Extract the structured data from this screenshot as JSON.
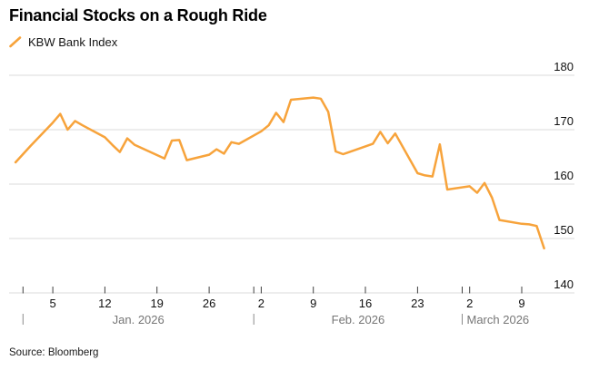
{
  "header": {
    "title": "Financial Stocks on a Rough Ride"
  },
  "legend": {
    "series_label": "KBW Bank Index",
    "marker_color": "#F7A33B"
  },
  "footer": {
    "source": "Source: Bloomberg"
  },
  "chart_data": {
    "type": "line",
    "title": "Financial Stocks on a Rough Ride",
    "legend_position": "top-left",
    "grid": "horizontal",
    "style": {
      "line_color": "#F7A33B",
      "grid_color": "#DBDBDB",
      "axis_text_color": "#101010",
      "tick_color": "#3F3F3F",
      "month_text_color": "#767676",
      "background": "#FFFFFF"
    },
    "y_axis": {
      "side": "right",
      "range": [
        140,
        180
      ],
      "ticks": [
        140,
        150,
        160,
        170,
        180
      ]
    },
    "x_axis": {
      "range": [
        "2025-12-30",
        "2026-03-14"
      ],
      "week_ticks": [
        {
          "date": "2026-01-05",
          "label": "5"
        },
        {
          "date": "2026-01-12",
          "label": "12"
        },
        {
          "date": "2026-01-19",
          "label": "19"
        },
        {
          "date": "2026-01-26",
          "label": "26"
        },
        {
          "date": "2026-02-02",
          "label": "2"
        },
        {
          "date": "2026-02-09",
          "label": "9"
        },
        {
          "date": "2026-02-16",
          "label": "16"
        },
        {
          "date": "2026-02-23",
          "label": "23"
        },
        {
          "date": "2026-03-02",
          "label": "2"
        },
        {
          "date": "2026-03-09",
          "label": "9"
        }
      ],
      "month_boundary_ticks": [
        "2026-01-01",
        "2026-02-01",
        "2026-03-01"
      ],
      "months": [
        {
          "label": "Jan. 2026",
          "start": "2026-01-01",
          "end": "2026-02-01",
          "align": "center"
        },
        {
          "label": "Feb. 2026",
          "start": "2026-02-01",
          "end": "2026-03-01",
          "align": "center"
        },
        {
          "label": "March 2026",
          "start": "2026-03-01",
          "end": "2026-03-14",
          "align": "left"
        }
      ]
    },
    "series": [
      {
        "name": "KBW Bank Index",
        "color": "#F7A33B",
        "points": [
          {
            "date": "2025-12-31",
            "value": 164.0
          },
          {
            "date": "2026-01-02",
            "value": 167.0
          },
          {
            "date": "2026-01-05",
            "value": 171.3
          },
          {
            "date": "2026-01-06",
            "value": 172.9
          },
          {
            "date": "2026-01-07",
            "value": 170.0
          },
          {
            "date": "2026-01-08",
            "value": 171.6
          },
          {
            "date": "2026-01-09",
            "value": 170.8
          },
          {
            "date": "2026-01-12",
            "value": 168.6
          },
          {
            "date": "2026-01-13",
            "value": 167.2
          },
          {
            "date": "2026-01-14",
            "value": 165.9
          },
          {
            "date": "2026-01-15",
            "value": 168.4
          },
          {
            "date": "2026-01-16",
            "value": 167.2
          },
          {
            "date": "2026-01-20",
            "value": 164.7
          },
          {
            "date": "2026-01-21",
            "value": 168.0
          },
          {
            "date": "2026-01-22",
            "value": 168.1
          },
          {
            "date": "2026-01-23",
            "value": 164.4
          },
          {
            "date": "2026-01-26",
            "value": 165.4
          },
          {
            "date": "2026-01-27",
            "value": 166.4
          },
          {
            "date": "2026-01-28",
            "value": 165.6
          },
          {
            "date": "2026-01-29",
            "value": 167.7
          },
          {
            "date": "2026-01-30",
            "value": 167.4
          },
          {
            "date": "2026-02-02",
            "value": 169.7
          },
          {
            "date": "2026-02-03",
            "value": 170.8
          },
          {
            "date": "2026-02-04",
            "value": 173.1
          },
          {
            "date": "2026-02-05",
            "value": 171.4
          },
          {
            "date": "2026-02-06",
            "value": 175.5
          },
          {
            "date": "2026-02-09",
            "value": 175.9
          },
          {
            "date": "2026-02-10",
            "value": 175.7
          },
          {
            "date": "2026-02-11",
            "value": 173.3
          },
          {
            "date": "2026-02-12",
            "value": 166.0
          },
          {
            "date": "2026-02-13",
            "value": 165.5
          },
          {
            "date": "2026-02-17",
            "value": 167.4
          },
          {
            "date": "2026-02-18",
            "value": 169.6
          },
          {
            "date": "2026-02-19",
            "value": 167.5
          },
          {
            "date": "2026-02-20",
            "value": 169.3
          },
          {
            "date": "2026-02-23",
            "value": 162.0
          },
          {
            "date": "2026-02-24",
            "value": 161.6
          },
          {
            "date": "2026-02-25",
            "value": 161.4
          },
          {
            "date": "2026-02-26",
            "value": 167.3
          },
          {
            "date": "2026-02-27",
            "value": 159.0
          },
          {
            "date": "2026-03-02",
            "value": 159.6
          },
          {
            "date": "2026-03-03",
            "value": 158.4
          },
          {
            "date": "2026-03-04",
            "value": 160.2
          },
          {
            "date": "2026-03-05",
            "value": 157.5
          },
          {
            "date": "2026-03-06",
            "value": 153.4
          },
          {
            "date": "2026-03-09",
            "value": 152.7
          },
          {
            "date": "2026-03-10",
            "value": 152.6
          },
          {
            "date": "2026-03-11",
            "value": 152.3
          },
          {
            "date": "2026-03-12",
            "value": 148.2
          }
        ]
      }
    ]
  }
}
